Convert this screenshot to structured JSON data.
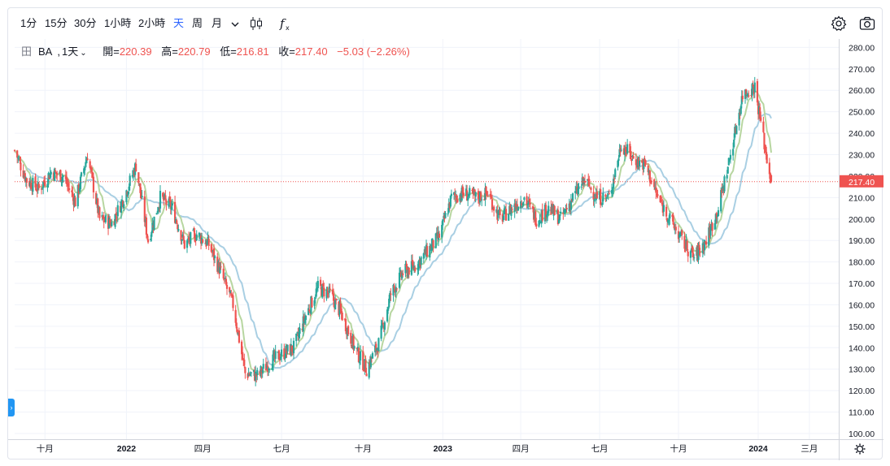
{
  "toolbar": {
    "intervals": [
      "1分",
      "15分",
      "30分",
      "1小時",
      "2小時",
      "天",
      "周",
      "月"
    ],
    "active_interval": "天",
    "icons": [
      "chevron-down-icon",
      "candlestick-icon",
      "indicator-fx-icon",
      "gear-icon",
      "camera-icon"
    ]
  },
  "legend": {
    "symbol": "BA",
    "interval": "1天",
    "open_label": "開=",
    "open": "220.39",
    "high_label": "高=",
    "high": "220.79",
    "low_label": "低=",
    "low": "216.81",
    "close_label": "收=",
    "close": "217.40",
    "change": "−5.03 (−2.26%)"
  },
  "colors": {
    "up": "#26a69a",
    "down": "#ef5350",
    "ma_fast": "#b7d6a0",
    "ma_slow": "#a9cfe3",
    "last_price": "#ef5350"
  },
  "chart_data": {
    "type": "candlestick",
    "symbol": "BA",
    "interval": "1天",
    "ylim": [
      100,
      280
    ],
    "y_ticks": [
      "100.00",
      "110.00",
      "120.00",
      "130.00",
      "140.00",
      "150.00",
      "160.00",
      "170.00",
      "180.00",
      "190.00",
      "200.00",
      "210.00",
      "220.00",
      "230.00",
      "240.00",
      "250.00",
      "260.00",
      "270.00",
      "280.00"
    ],
    "x_ticks": [
      {
        "label": "十月",
        "bold": false
      },
      {
        "label": "2022",
        "bold": true
      },
      {
        "label": "四月",
        "bold": false
      },
      {
        "label": "七月",
        "bold": false
      },
      {
        "label": "十月",
        "bold": false
      },
      {
        "label": "2023",
        "bold": true
      },
      {
        "label": "四月",
        "bold": false
      },
      {
        "label": "七月",
        "bold": false
      },
      {
        "label": "十月",
        "bold": false
      },
      {
        "label": "2024",
        "bold": true
      },
      {
        "label": "三月",
        "bold": false
      }
    ],
    "price_path": [
      [
        "2021-08-27",
        232
      ],
      [
        "2021-09-10",
        218
      ],
      [
        "2021-09-24",
        214
      ],
      [
        "2021-10-08",
        222
      ],
      [
        "2021-10-22",
        220
      ],
      [
        "2021-11-05",
        208
      ],
      [
        "2021-11-19",
        230
      ],
      [
        "2021-12-03",
        200
      ],
      [
        "2021-12-17",
        198
      ],
      [
        "2021-12-31",
        210
      ],
      [
        "2022-01-14",
        225
      ],
      [
        "2022-01-28",
        190
      ],
      [
        "2022-02-11",
        210
      ],
      [
        "2022-02-25",
        205
      ],
      [
        "2022-03-11",
        188
      ],
      [
        "2022-03-25",
        193
      ],
      [
        "2022-04-08",
        188
      ],
      [
        "2022-04-22",
        175
      ],
      [
        "2022-05-06",
        160
      ],
      [
        "2022-05-20",
        128
      ],
      [
        "2022-06-03",
        127
      ],
      [
        "2022-06-17",
        133
      ],
      [
        "2022-07-01",
        137
      ],
      [
        "2022-07-15",
        140
      ],
      [
        "2022-07-29",
        155
      ],
      [
        "2022-08-12",
        168
      ],
      [
        "2022-08-26",
        165
      ],
      [
        "2022-09-09",
        155
      ],
      [
        "2022-09-23",
        140
      ],
      [
        "2022-10-07",
        130
      ],
      [
        "2022-10-21",
        142
      ],
      [
        "2022-11-04",
        165
      ],
      [
        "2022-11-18",
        175
      ],
      [
        "2022-12-02",
        178
      ],
      [
        "2022-12-16",
        185
      ],
      [
        "2022-12-30",
        192
      ],
      [
        "2023-01-13",
        210
      ],
      [
        "2023-01-27",
        212
      ],
      [
        "2023-02-10",
        210
      ],
      [
        "2023-02-24",
        212
      ],
      [
        "2023-03-10",
        200
      ],
      [
        "2023-03-24",
        205
      ],
      [
        "2023-04-07",
        210
      ],
      [
        "2023-04-21",
        200
      ],
      [
        "2023-05-05",
        205
      ],
      [
        "2023-05-19",
        200
      ],
      [
        "2023-06-02",
        210
      ],
      [
        "2023-06-16",
        218
      ],
      [
        "2023-06-30",
        210
      ],
      [
        "2023-07-14",
        210
      ],
      [
        "2023-07-28",
        235
      ],
      [
        "2023-08-11",
        228
      ],
      [
        "2023-08-25",
        225
      ],
      [
        "2023-09-08",
        210
      ],
      [
        "2023-09-22",
        200
      ],
      [
        "2023-10-06",
        190
      ],
      [
        "2023-10-20",
        182
      ],
      [
        "2023-11-03",
        190
      ],
      [
        "2023-11-17",
        205
      ],
      [
        "2023-12-01",
        230
      ],
      [
        "2023-12-15",
        258
      ],
      [
        "2023-12-29",
        262
      ],
      [
        "2024-01-05",
        245
      ],
      [
        "2024-01-12",
        228
      ],
      [
        "2024-01-17",
        217.4
      ]
    ],
    "ma_fast_label": "",
    "ma_slow_label": "",
    "last_price": 217.4
  }
}
